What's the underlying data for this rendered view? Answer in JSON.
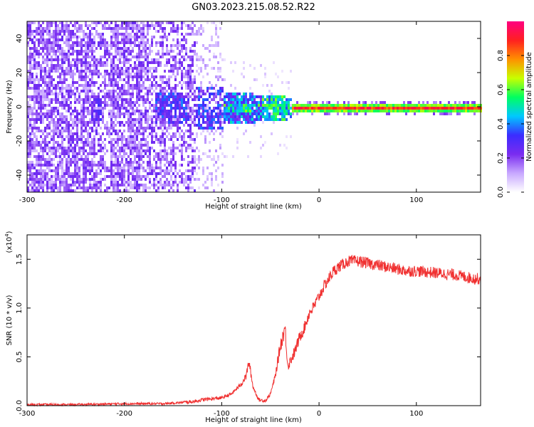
{
  "title": "GN03.2023.215.08.52.R22",
  "chart_data": [
    {
      "type": "heatmap",
      "xlabel": "Height of straight line (km)",
      "ylabel": "Frequency (Hz)",
      "xlim": [
        -300,
        166
      ],
      "ylim": [
        -50,
        50
      ],
      "xticks": [
        -300,
        -200,
        -100,
        0,
        100
      ],
      "yticks": [
        -40,
        -20,
        0,
        20,
        40
      ],
      "colorbar": {
        "label": "Normalized spectral amplitude",
        "range": [
          0,
          1
        ],
        "ticks": [
          "0.0",
          "0.2",
          "0.4",
          "0.6",
          "0.8"
        ],
        "tick_values": [
          0,
          0.2,
          0.4,
          0.6,
          0.8
        ],
        "colormap": "rainbow (white → purple → blue → cyan → green → yellow → red → magenta)",
        "colors": [
          "#ffffff",
          "#c8a8ff",
          "#7a2cf0",
          "#3b2cff",
          "#00c8ff",
          "#00ff60",
          "#c8ff00",
          "#ff9000",
          "#ff2020",
          "#ff0080"
        ]
      },
      "description_of_content": []
    },
    {
      "type": "line",
      "xlabel": "Height of straight line (km)",
      "ylabel": "SNR (10 * v/v)",
      "scale_label": "(x10",
      "scale_exp": "4",
      "scale_close": ")",
      "xlim": [
        -300,
        166
      ],
      "ylim": [
        0,
        1.75
      ],
      "xticks": [
        -300,
        -200,
        -100,
        0,
        100
      ],
      "yticks": [
        "0.0",
        "0.5",
        "1.0",
        "1.5"
      ],
      "ytick_values": [
        0,
        0.5,
        1.0,
        1.5
      ],
      "color": "#f03030",
      "series": [
        {
          "x": [
            -300,
            -250,
            -200,
            -160,
            -130,
            -120,
            -100,
            -90,
            -80,
            -75,
            -72,
            -68,
            -62,
            -55,
            -50,
            -45,
            -40,
            -35,
            -32,
            -30,
            -25,
            -20,
            -15,
            -10,
            -5,
            0,
            5,
            10,
            15,
            20,
            25,
            30,
            40,
            50,
            60,
            70,
            80,
            90,
            100,
            110,
            120,
            130,
            140,
            150,
            160,
            166
          ],
          "y": [
            0.01,
            0.01,
            0.02,
            0.02,
            0.04,
            0.06,
            0.08,
            0.12,
            0.22,
            0.3,
            0.45,
            0.2,
            0.06,
            0.05,
            0.12,
            0.3,
            0.6,
            0.8,
            0.4,
            0.45,
            0.55,
            0.7,
            0.8,
            0.95,
            1.02,
            1.12,
            1.22,
            1.3,
            1.38,
            1.42,
            1.45,
            1.48,
            1.48,
            1.46,
            1.44,
            1.42,
            1.4,
            1.38,
            1.38,
            1.37,
            1.36,
            1.35,
            1.34,
            1.32,
            1.3,
            1.3
          ]
        }
      ]
    }
  ]
}
